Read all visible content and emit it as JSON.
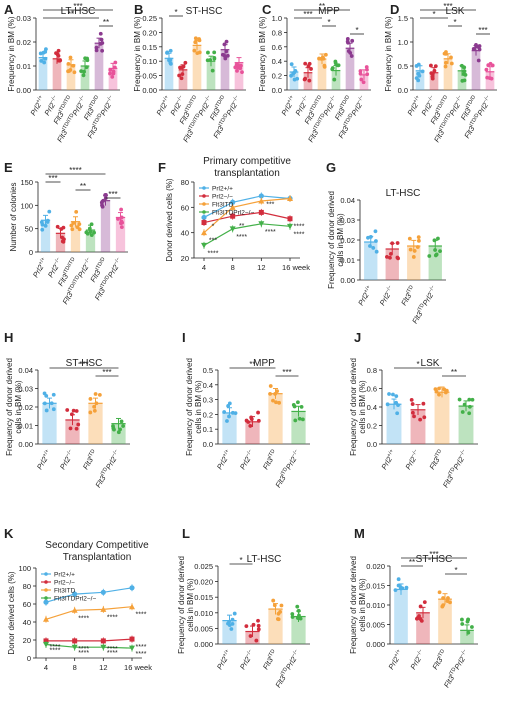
{
  "colors": {
    "wt": "#4fb0e6",
    "ko": "#d22d3d",
    "itd": "#f5a13a",
    "dko": "#43b049",
    "purple": "#8b3a8f",
    "pink": "#e8539a",
    "axis": "#222222"
  },
  "chart_data": [
    {
      "panel": "A",
      "type": "bar",
      "title": "LT-HSC",
      "ylabel": "Frequency in BM (%)",
      "ylim": [
        0,
        0.03
      ],
      "yticks": [
        "0.00",
        "0.01",
        "0.02",
        "0.03"
      ],
      "categories": [
        "Prl2+/+",
        "Prl2−/−",
        "Flt3ITD/ITD",
        "Flt3ITD/ITDPrl2−/−",
        "Flt3ITD/D",
        "Flt3ITD/DPrl2−/−"
      ],
      "values": [
        0.0135,
        0.013,
        0.0105,
        0.01,
        0.0195,
        0.009
      ],
      "sig": [
        {
          "a": 0,
          "b": 5,
          "label": "***"
        },
        {
          "a": 0,
          "b": 4,
          "label": "**"
        },
        {
          "a": 4,
          "b": 5,
          "label": "**"
        }
      ]
    },
    {
      "panel": "B",
      "type": "bar",
      "title": "ST-HSC",
      "ylabel": "Frequency in BM (%)",
      "ylim": [
        0,
        0.25
      ],
      "yticks": [
        "0.00",
        "0.05",
        "0.10",
        "0.15",
        "0.20",
        "0.25"
      ],
      "categories": [
        "Prl2+/+",
        "Prl2−/−",
        "Flt3ITD/ITD",
        "Flt3ITD/ITDPrl2−/−",
        "Flt3ITD/D",
        "Flt3ITD/DPrl2−/−"
      ],
      "values": [
        0.11,
        0.07,
        0.155,
        0.1,
        0.14,
        0.095
      ],
      "sig": [
        {
          "a": 0,
          "b": 1,
          "label": "*"
        }
      ]
    },
    {
      "panel": "C",
      "type": "bar",
      "title": "MPP",
      "ylabel": "Frequency in BM (%)",
      "ylim": [
        0,
        1.0
      ],
      "yticks": [
        "0.0",
        "0.2",
        "0.4",
        "0.6",
        "0.8",
        "1.0"
      ],
      "categories": [
        "Prl2+/+",
        "Prl2−/−",
        "Flt3ITD/ITD",
        "Flt3ITD/ITDPrl2−/−",
        "Flt3ITD/D",
        "Flt3ITD/DPrl2−/−"
      ],
      "values": [
        0.25,
        0.24,
        0.43,
        0.27,
        0.58,
        0.21
      ],
      "sig": [
        {
          "a": 0,
          "b": 4,
          "label": "**"
        },
        {
          "a": 0,
          "b": 2,
          "label": "***"
        },
        {
          "a": 2,
          "b": 3,
          "label": "*"
        },
        {
          "a": 4,
          "b": 5,
          "label": "*"
        }
      ]
    },
    {
      "panel": "D",
      "type": "bar",
      "title": "LSK",
      "ylabel": "Frequency in BM (%)",
      "ylim": [
        0,
        1.5
      ],
      "yticks": [
        "0.0",
        "0.5",
        "1.0",
        "1.5"
      ],
      "categories": [
        "Prl2+/+",
        "Prl2−/−",
        "Flt3ITD/ITD",
        "Flt3ITD/ITDPrl2−/−",
        "Flt3ITD/D",
        "Flt3ITD/DPrl2−/−"
      ],
      "values": [
        0.4,
        0.36,
        0.65,
        0.4,
        0.82,
        0.38
      ],
      "sig": [
        {
          "a": 0,
          "b": 4,
          "label": "***"
        },
        {
          "a": 0,
          "b": 2,
          "label": "*"
        },
        {
          "a": 2,
          "b": 3,
          "label": "*"
        },
        {
          "a": 4,
          "b": 5,
          "label": "***"
        }
      ]
    },
    {
      "panel": "E",
      "type": "bar",
      "title": "",
      "ylabel": "Number of colonies",
      "ylim": [
        0,
        150
      ],
      "yticks": [
        "0",
        "50",
        "100",
        "150"
      ],
      "categories": [
        "Prl2+/+",
        "Prl2−/−",
        "Flt3ITD/ITD",
        "Flt3ITD/ITDPrl2−/−",
        "Flt3ITD/D",
        "Flt3ITD/DPrl2−/−"
      ],
      "values": [
        68,
        40,
        65,
        47,
        110,
        74
      ],
      "sig": [
        {
          "a": 0,
          "b": 4,
          "label": "****"
        },
        {
          "a": 0,
          "b": 1,
          "label": "***"
        },
        {
          "a": 2,
          "b": 3,
          "label": "**"
        },
        {
          "a": 4,
          "b": 5,
          "label": "***"
        }
      ]
    },
    {
      "panel": "F",
      "type": "line",
      "title": "Primary competitive transplantation",
      "ylabel": "Donor derived cells (%)",
      "xlabel": "",
      "ylim": [
        20,
        80
      ],
      "yticks": [
        "20",
        "40",
        "60",
        "80"
      ],
      "xticks": [
        "4",
        "8",
        "12",
        "16 week"
      ],
      "legend": "top-left",
      "series": [
        {
          "name": "Prl2+/+",
          "values": [
            52,
            64,
            69,
            67
          ]
        },
        {
          "name": "Prl2−/−",
          "values": [
            48,
            53,
            56,
            51
          ]
        },
        {
          "name": "Flt3ITD",
          "values": [
            40,
            60,
            65,
            67
          ]
        },
        {
          "name": "Flt3ITDPrl2−/−",
          "values": [
            30,
            43,
            47,
            45
          ]
        }
      ],
      "annotations": [
        "****",
        "*",
        "**",
        "***",
        "***",
        "****",
        "****",
        "****",
        "****"
      ]
    },
    {
      "panel": "G",
      "type": "bar",
      "title": "LT-HSC",
      "ylabel": "Frequency of donor derived cells in BM (%)",
      "ylim": [
        0,
        0.04
      ],
      "yticks": [
        "0.00",
        "0.01",
        "0.02",
        "0.03",
        "0.04"
      ],
      "categories": [
        "Prl2+/+",
        "Prl2−/−",
        "Flt3ITD",
        "Flt3ITDPrl2−/−"
      ],
      "values": [
        0.019,
        0.0155,
        0.017,
        0.017
      ],
      "sig": []
    },
    {
      "panel": "H",
      "type": "bar",
      "title": "ST-HSC",
      "ylabel": "Frequency of donor derived cells in BM (%)",
      "ylim": [
        0,
        0.04
      ],
      "yticks": [
        "0.00",
        "0.01",
        "0.02",
        "0.03",
        "0.04"
      ],
      "categories": [
        "Prl2+/+",
        "Prl2−/−",
        "Flt3ITD",
        "Flt3ITDPrl2−/−"
      ],
      "values": [
        0.022,
        0.013,
        0.022,
        0.011
      ],
      "sig": [
        {
          "a": 0,
          "b": 3,
          "label": "***"
        },
        {
          "a": 2,
          "b": 3,
          "label": "***"
        }
      ]
    },
    {
      "panel": "I",
      "type": "bar",
      "title": "MPP",
      "ylabel": "Frequency of donor derived cells in BM (%)",
      "ylim": [
        0,
        0.5
      ],
      "yticks": [
        "0.0",
        "0.1",
        "0.2",
        "0.3",
        "0.4",
        "0.5"
      ],
      "categories": [
        "Prl2+/+",
        "Prl2−/−",
        "Flt3ITD",
        "Flt3ITDPrl2−/−"
      ],
      "values": [
        0.21,
        0.15,
        0.34,
        0.22
      ],
      "sig": [
        {
          "a": 0,
          "b": 2,
          "label": "**"
        },
        {
          "a": 2,
          "b": 3,
          "label": "***"
        }
      ]
    },
    {
      "panel": "J",
      "type": "bar",
      "title": "LSK",
      "ylabel": "Frequency of donor derived cells in BM (%)",
      "ylim": [
        0,
        0.8
      ],
      "yticks": [
        "0.0",
        "0.2",
        "0.4",
        "0.6",
        "0.8"
      ],
      "categories": [
        "Prl2+/+",
        "Prl2−/−",
        "Flt3ITD",
        "Flt3ITDPrl2−/−"
      ],
      "values": [
        0.43,
        0.37,
        0.56,
        0.41
      ],
      "sig": [
        {
          "a": 0,
          "b": 2,
          "label": "*"
        },
        {
          "a": 2,
          "b": 3,
          "label": "**"
        }
      ]
    },
    {
      "panel": "K",
      "type": "line",
      "title": "Secondary Competitive Transplantation",
      "ylabel": "Donor derived cells (%)",
      "xlabel": "",
      "ylim": [
        0,
        100
      ],
      "yticks": [
        "0",
        "20",
        "40",
        "60",
        "80",
        "100"
      ],
      "xticks": [
        "4",
        "8",
        "12",
        "16 week"
      ],
      "legend": "top-left",
      "series": [
        {
          "name": "Prl2+/+",
          "values": [
            62,
            71,
            73,
            78
          ]
        },
        {
          "name": "Prl2−/−",
          "values": [
            19,
            19,
            19,
            21
          ]
        },
        {
          "name": "Flt3ITD",
          "values": [
            43,
            53,
            54,
            57
          ]
        },
        {
          "name": "Flt3ITDPrl2−/−",
          "values": [
            15,
            12,
            12,
            11
          ]
        }
      ],
      "annotations": [
        "****",
        "****",
        "****",
        "****",
        "****",
        "****",
        "****",
        "****",
        "****",
        "****",
        "****"
      ]
    },
    {
      "panel": "L",
      "type": "bar",
      "title": "LT-HSC",
      "ylabel": "Frequency of donor derived cells in BM (%)",
      "ylim": [
        0,
        0.025
      ],
      "yticks": [
        "0.000",
        "0.005",
        "0.010",
        "0.015",
        "0.020",
        "0.025"
      ],
      "categories": [
        "Prl2+/+",
        "Prl2−/−",
        "Flt3ITD",
        "Flt3ITDPrl2−/−"
      ],
      "values": [
        0.0075,
        0.004,
        0.0112,
        0.0088
      ],
      "sig": [
        {
          "a": 0,
          "b": 1,
          "label": "*"
        }
      ]
    },
    {
      "panel": "M",
      "type": "bar",
      "title": "ST-HSC",
      "ylabel": "Frequency of donor derived cells in BM (%)",
      "ylim": [
        0,
        0.02
      ],
      "yticks": [
        "0.000",
        "0.005",
        "0.010",
        "0.015",
        "0.020"
      ],
      "categories": [
        "Prl2+/+",
        "Prl2−/−",
        "Flt3ITD",
        "Flt3ITDPrl2−/−"
      ],
      "values": [
        0.014,
        0.008,
        0.0115,
        0.0035
      ],
      "sig": [
        {
          "a": 0,
          "b": 3,
          "label": "***"
        },
        {
          "a": 0,
          "b": 1,
          "label": "**"
        },
        {
          "a": 2,
          "b": 3,
          "label": "*"
        }
      ]
    }
  ]
}
